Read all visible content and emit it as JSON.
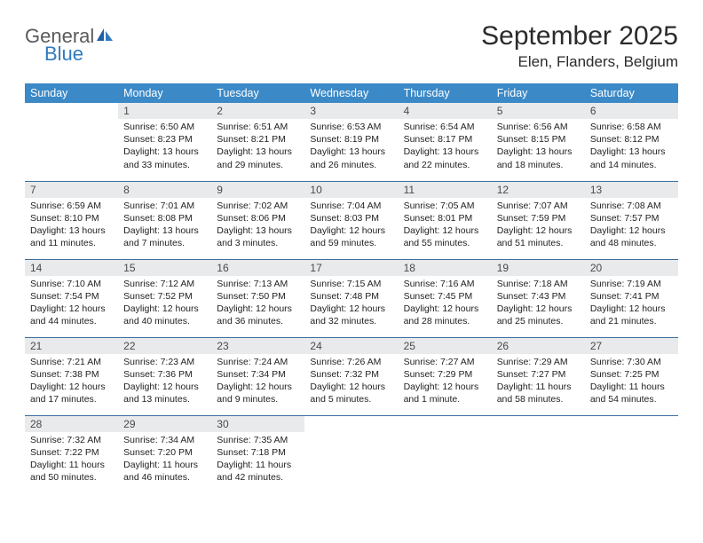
{
  "brand": {
    "word1": "General",
    "word2": "Blue"
  },
  "title": "September 2025",
  "location": "Elen, Flanders, Belgium",
  "colors": {
    "header_bg": "#3b89c7",
    "header_text": "#ffffff",
    "daynum_bg": "#e9eaeb",
    "row_border": "#3b6fa0",
    "logo_gray": "#5a5a5a",
    "logo_blue": "#2f7abf"
  },
  "weekdays": [
    "Sunday",
    "Monday",
    "Tuesday",
    "Wednesday",
    "Thursday",
    "Friday",
    "Saturday"
  ],
  "weeks": [
    [
      {
        "n": "",
        "sr": "",
        "ss": "",
        "dl": ""
      },
      {
        "n": "1",
        "sr": "6:50 AM",
        "ss": "8:23 PM",
        "dl": "13 hours and 33 minutes."
      },
      {
        "n": "2",
        "sr": "6:51 AM",
        "ss": "8:21 PM",
        "dl": "13 hours and 29 minutes."
      },
      {
        "n": "3",
        "sr": "6:53 AM",
        "ss": "8:19 PM",
        "dl": "13 hours and 26 minutes."
      },
      {
        "n": "4",
        "sr": "6:54 AM",
        "ss": "8:17 PM",
        "dl": "13 hours and 22 minutes."
      },
      {
        "n": "5",
        "sr": "6:56 AM",
        "ss": "8:15 PM",
        "dl": "13 hours and 18 minutes."
      },
      {
        "n": "6",
        "sr": "6:58 AM",
        "ss": "8:12 PM",
        "dl": "13 hours and 14 minutes."
      }
    ],
    [
      {
        "n": "7",
        "sr": "6:59 AM",
        "ss": "8:10 PM",
        "dl": "13 hours and 11 minutes."
      },
      {
        "n": "8",
        "sr": "7:01 AM",
        "ss": "8:08 PM",
        "dl": "13 hours and 7 minutes."
      },
      {
        "n": "9",
        "sr": "7:02 AM",
        "ss": "8:06 PM",
        "dl": "13 hours and 3 minutes."
      },
      {
        "n": "10",
        "sr": "7:04 AM",
        "ss": "8:03 PM",
        "dl": "12 hours and 59 minutes."
      },
      {
        "n": "11",
        "sr": "7:05 AM",
        "ss": "8:01 PM",
        "dl": "12 hours and 55 minutes."
      },
      {
        "n": "12",
        "sr": "7:07 AM",
        "ss": "7:59 PM",
        "dl": "12 hours and 51 minutes."
      },
      {
        "n": "13",
        "sr": "7:08 AM",
        "ss": "7:57 PM",
        "dl": "12 hours and 48 minutes."
      }
    ],
    [
      {
        "n": "14",
        "sr": "7:10 AM",
        "ss": "7:54 PM",
        "dl": "12 hours and 44 minutes."
      },
      {
        "n": "15",
        "sr": "7:12 AM",
        "ss": "7:52 PM",
        "dl": "12 hours and 40 minutes."
      },
      {
        "n": "16",
        "sr": "7:13 AM",
        "ss": "7:50 PM",
        "dl": "12 hours and 36 minutes."
      },
      {
        "n": "17",
        "sr": "7:15 AM",
        "ss": "7:48 PM",
        "dl": "12 hours and 32 minutes."
      },
      {
        "n": "18",
        "sr": "7:16 AM",
        "ss": "7:45 PM",
        "dl": "12 hours and 28 minutes."
      },
      {
        "n": "19",
        "sr": "7:18 AM",
        "ss": "7:43 PM",
        "dl": "12 hours and 25 minutes."
      },
      {
        "n": "20",
        "sr": "7:19 AM",
        "ss": "7:41 PM",
        "dl": "12 hours and 21 minutes."
      }
    ],
    [
      {
        "n": "21",
        "sr": "7:21 AM",
        "ss": "7:38 PM",
        "dl": "12 hours and 17 minutes."
      },
      {
        "n": "22",
        "sr": "7:23 AM",
        "ss": "7:36 PM",
        "dl": "12 hours and 13 minutes."
      },
      {
        "n": "23",
        "sr": "7:24 AM",
        "ss": "7:34 PM",
        "dl": "12 hours and 9 minutes."
      },
      {
        "n": "24",
        "sr": "7:26 AM",
        "ss": "7:32 PM",
        "dl": "12 hours and 5 minutes."
      },
      {
        "n": "25",
        "sr": "7:27 AM",
        "ss": "7:29 PM",
        "dl": "12 hours and 1 minute."
      },
      {
        "n": "26",
        "sr": "7:29 AM",
        "ss": "7:27 PM",
        "dl": "11 hours and 58 minutes."
      },
      {
        "n": "27",
        "sr": "7:30 AM",
        "ss": "7:25 PM",
        "dl": "11 hours and 54 minutes."
      }
    ],
    [
      {
        "n": "28",
        "sr": "7:32 AM",
        "ss": "7:22 PM",
        "dl": "11 hours and 50 minutes."
      },
      {
        "n": "29",
        "sr": "7:34 AM",
        "ss": "7:20 PM",
        "dl": "11 hours and 46 minutes."
      },
      {
        "n": "30",
        "sr": "7:35 AM",
        "ss": "7:18 PM",
        "dl": "11 hours and 42 minutes."
      },
      {
        "n": "",
        "sr": "",
        "ss": "",
        "dl": ""
      },
      {
        "n": "",
        "sr": "",
        "ss": "",
        "dl": ""
      },
      {
        "n": "",
        "sr": "",
        "ss": "",
        "dl": ""
      },
      {
        "n": "",
        "sr": "",
        "ss": "",
        "dl": ""
      }
    ]
  ]
}
